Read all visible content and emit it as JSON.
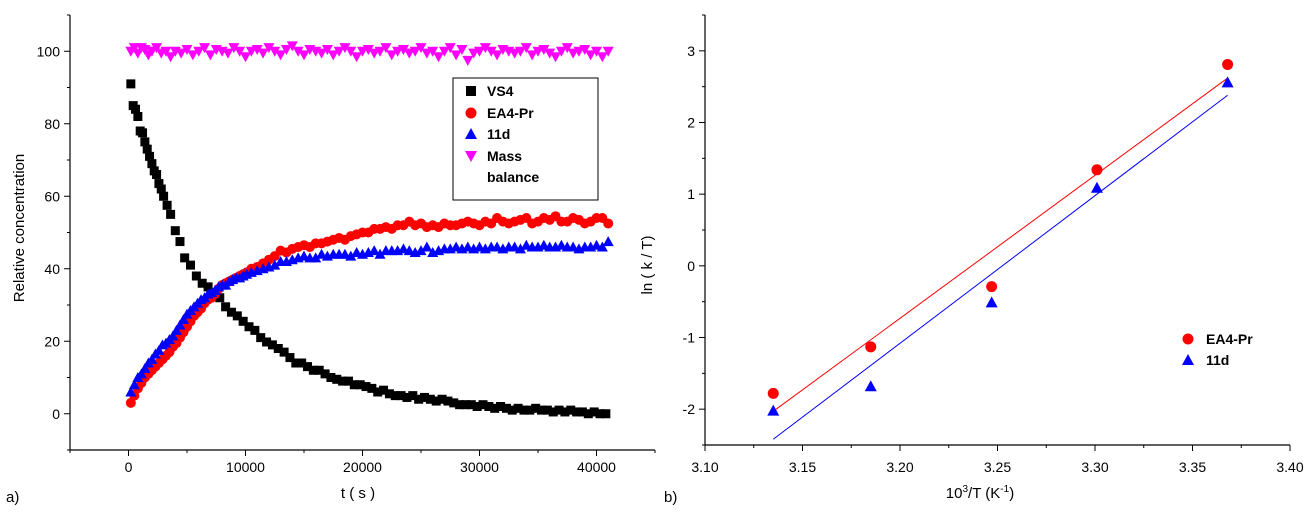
{
  "chart_data": [
    {
      "type": "scatter",
      "panel_label": "a)",
      "title": "",
      "xlabel": "t ( s )",
      "ylabel": "Relative concentration",
      "xlim": [
        -5000,
        45000
      ],
      "ylim": [
        -10,
        110
      ],
      "xticks": [
        0,
        10000,
        20000,
        30000,
        40000
      ],
      "yticks": [
        0,
        20,
        40,
        60,
        80,
        100
      ],
      "grid": false,
      "legend_position": "top-right",
      "series": [
        {
          "name": "VS4",
          "marker": "square",
          "color": "#000000",
          "x": [
            200,
            400,
            600,
            800,
            1000,
            1200,
            1400,
            1600,
            1800,
            2000,
            2200,
            2400,
            2600,
            2800,
            3000,
            3300,
            3600,
            4000,
            4400,
            4800,
            5300,
            5800,
            6300,
            6800,
            7300,
            7800,
            8300,
            8800,
            9300,
            9800,
            10300,
            10800,
            11300,
            11800,
            12300,
            12800,
            13300,
            13800,
            14300,
            14800,
            15300,
            15800,
            16300,
            16800,
            17300,
            17800,
            18300,
            18800,
            19300,
            19800,
            20300,
            20800,
            21300,
            21800,
            22300,
            22800,
            23300,
            23800,
            24300,
            24800,
            25300,
            25800,
            26300,
            26800,
            27300,
            27800,
            28300,
            28800,
            29300,
            29800,
            30300,
            30800,
            31300,
            31800,
            32300,
            32800,
            33300,
            33800,
            34300,
            34800,
            35300,
            35800,
            36300,
            36800,
            37300,
            37800,
            38300,
            38800,
            39300,
            39800,
            40300,
            40800
          ],
          "y": [
            91,
            85,
            84,
            82,
            78,
            77.5,
            75,
            73,
            71,
            69,
            67,
            66,
            63.5,
            62,
            60,
            57.5,
            55,
            50.5,
            47.5,
            43,
            41,
            38,
            36,
            35,
            33.5,
            32,
            29.5,
            28,
            27,
            25.5,
            24,
            23,
            21,
            19.8,
            19,
            18,
            17,
            15.5,
            14,
            14,
            13,
            12,
            12,
            11,
            10,
            9.5,
            9,
            9,
            8,
            8,
            7.5,
            7,
            6,
            6.5,
            5.5,
            5,
            5,
            4.5,
            5,
            4,
            4.5,
            4,
            3.5,
            4,
            3.5,
            3,
            2.5,
            2.5,
            2.5,
            2,
            2.5,
            2,
            1.5,
            2,
            1.5,
            1,
            1.5,
            1,
            1,
            1.5,
            1,
            1,
            0.5,
            1,
            0.5,
            1,
            0.5,
            0.5,
            0,
            0.5,
            0,
            0
          ]
        },
        {
          "name": "EA4-Pr",
          "marker": "circle",
          "color": "#ff0000",
          "x": [
            200,
            500,
            800,
            1100,
            1400,
            1700,
            2000,
            2300,
            2600,
            2900,
            3200,
            3500,
            3800,
            4100,
            4400,
            4700,
            5000,
            5300,
            5600,
            5900,
            6200,
            6500,
            6800,
            7100,
            7400,
            7700,
            8000,
            8300,
            8600,
            8900,
            9200,
            9500,
            9800,
            10100,
            10500,
            11000,
            11500,
            12000,
            12500,
            13000,
            13500,
            14000,
            14500,
            15000,
            15500,
            16000,
            16500,
            17000,
            17500,
            18000,
            18500,
            19000,
            19500,
            20000,
            20500,
            21000,
            21500,
            22000,
            22500,
            23000,
            23500,
            24000,
            24500,
            25000,
            25500,
            26000,
            26500,
            27000,
            27500,
            28000,
            28500,
            29000,
            29500,
            30000,
            30500,
            31000,
            31500,
            32000,
            32500,
            33000,
            33500,
            34000,
            34500,
            35000,
            35500,
            36000,
            36500,
            37000,
            37500,
            38000,
            38500,
            39000,
            39500,
            40000,
            40500,
            41000
          ],
          "y": [
            3,
            5,
            7,
            8.5,
            10,
            11,
            12,
            13,
            14,
            15,
            16,
            17,
            18.5,
            19.5,
            21,
            22.5,
            24,
            25.5,
            27,
            28,
            29,
            30.5,
            31.5,
            32,
            33,
            34.5,
            35.5,
            36,
            36.5,
            37,
            37.5,
            38,
            38.5,
            39,
            40,
            40.5,
            41.5,
            42.5,
            43.5,
            45,
            44.5,
            45.5,
            46,
            46.5,
            46,
            47,
            47,
            47.5,
            48,
            48.5,
            48,
            49,
            49.5,
            50,
            50,
            51,
            51,
            51.5,
            51,
            52,
            52,
            53,
            52,
            52.5,
            51.5,
            52,
            51.5,
            52.5,
            52,
            52,
            52.5,
            53,
            52.5,
            52,
            53,
            52.5,
            54,
            53,
            52.5,
            53,
            53.5,
            54,
            52.5,
            53,
            54,
            53.5,
            54.5,
            53,
            53,
            54,
            53.5,
            52.5,
            53,
            54,
            54,
            52.5
          ]
        },
        {
          "name": "11d",
          "marker": "triangle-up",
          "color": "#0000ff",
          "x": [
            200,
            500,
            800,
            1100,
            1400,
            1700,
            2000,
            2300,
            2600,
            2900,
            3200,
            3500,
            3800,
            4100,
            4400,
            4700,
            5000,
            5300,
            5600,
            5900,
            6200,
            6500,
            6800,
            7100,
            7400,
            7700,
            8000,
            8300,
            8600,
            8900,
            9200,
            9500,
            9800,
            10100,
            10500,
            11000,
            11500,
            12000,
            12500,
            13000,
            13500,
            14000,
            14500,
            15000,
            15500,
            16000,
            16500,
            17000,
            17500,
            18000,
            18500,
            19000,
            19500,
            20000,
            20500,
            21000,
            21500,
            22000,
            22500,
            23000,
            23500,
            24000,
            24500,
            25000,
            25500,
            26000,
            26500,
            27000,
            27500,
            28000,
            28500,
            29000,
            29500,
            30000,
            30500,
            31000,
            31500,
            32000,
            32500,
            33000,
            33500,
            34000,
            34500,
            35000,
            35500,
            36000,
            36500,
            37000,
            37500,
            38000,
            38500,
            39000,
            39500,
            40000,
            40500,
            41000
          ],
          "y": [
            6,
            8,
            10,
            11,
            12.5,
            14,
            15,
            16.5,
            17.5,
            19,
            19.5,
            20.5,
            21.5,
            23,
            24.5,
            26,
            27.5,
            28.5,
            29.5,
            30.5,
            31.5,
            32,
            33,
            33.5,
            34,
            35,
            35.5,
            35.5,
            36.5,
            37,
            37.5,
            37.5,
            38,
            38.5,
            39,
            39.5,
            40,
            40.5,
            41,
            42,
            42,
            42.5,
            43,
            43.5,
            43,
            43,
            44,
            43.5,
            44,
            44,
            44,
            43.5,
            44.5,
            44,
            44.5,
            45,
            44,
            45,
            45,
            45,
            45.5,
            45,
            44.5,
            45,
            46,
            44.5,
            45,
            45.5,
            45.5,
            46,
            45.5,
            46,
            45.5,
            46,
            45.5,
            46,
            46,
            45.5,
            46,
            46,
            45.5,
            46.5,
            46,
            46,
            46.5,
            46,
            46,
            46.5,
            46,
            46,
            45.5,
            46,
            46,
            46.5,
            46,
            47.5
          ]
        },
        {
          "name": "Mass\nbalance",
          "marker": "triangle-down",
          "color": "#ff00ff",
          "x": [
            200,
            500,
            800,
            1100,
            1400,
            1700,
            2000,
            2400,
            2800,
            3200,
            3600,
            4000,
            4500,
            5000,
            5500,
            6000,
            6500,
            7000,
            7500,
            8000,
            8500,
            9000,
            9500,
            10000,
            10500,
            11000,
            11500,
            12000,
            12500,
            13000,
            13500,
            14000,
            14500,
            15000,
            15500,
            16000,
            16500,
            17000,
            17500,
            18000,
            18500,
            19000,
            19500,
            20000,
            20500,
            21000,
            21500,
            22000,
            22500,
            23000,
            23500,
            24000,
            24500,
            25000,
            25500,
            26000,
            26500,
            27000,
            27500,
            28000,
            28500,
            29000,
            29500,
            30000,
            30500,
            31000,
            31500,
            32000,
            32500,
            33000,
            33500,
            34000,
            34500,
            35000,
            35500,
            36000,
            36500,
            37000,
            37500,
            38000,
            38500,
            39000,
            39500,
            40000,
            40500,
            41000
          ],
          "y": [
            100,
            101,
            99.5,
            101,
            100.5,
            99,
            100,
            101,
            99.5,
            100,
            98.5,
            100,
            99.5,
            100.5,
            99,
            100,
            101,
            99,
            100.5,
            100,
            99.5,
            101,
            100,
            98.5,
            100,
            100.5,
            99.5,
            101,
            100,
            99,
            100.5,
            101.5,
            100,
            99,
            100.5,
            100,
            99.5,
            100.5,
            99,
            100,
            101,
            100,
            98.5,
            100,
            100.5,
            99.5,
            100,
            101,
            99,
            100,
            100.5,
            99.5,
            100,
            101,
            99.5,
            100,
            98.5,
            100,
            101,
            99,
            100.5,
            97.5,
            99.5,
            100,
            101,
            100,
            99,
            100.5,
            100,
            99.5,
            100,
            101,
            99,
            100,
            100.5,
            99.5,
            98.5,
            100,
            101,
            99.5,
            100,
            100.5,
            99,
            100,
            98.5,
            100
          ]
        }
      ]
    },
    {
      "type": "scatter",
      "panel_label": "b)",
      "title": "",
      "xlabel_base": "10",
      "xlabel_sup": "3",
      "xlabel_mid": "/T (K",
      "xlabel_sup2": "-1",
      "xlabel_end": ")",
      "ylabel": "ln ( k / T)",
      "xlim": [
        3.1,
        3.4
      ],
      "ylim": [
        -2.5,
        3.5
      ],
      "xticks": [
        "3.10",
        "3.15",
        "3.20",
        "3.25",
        "3.30",
        "3.35",
        "3.40"
      ],
      "yticks": [
        "-2",
        "-1",
        "0",
        "1",
        "2",
        "3"
      ],
      "grid": false,
      "legend_position": "bottom-right",
      "series": [
        {
          "name": "EA4-Pr",
          "marker": "circle",
          "color": "#ff0000",
          "x": [
            3.135,
            3.185,
            3.247,
            3.301,
            3.368
          ],
          "y": [
            -1.78,
            -1.13,
            -0.29,
            1.34,
            2.81
          ],
          "fit": {
            "x": [
              3.135,
              3.368
            ],
            "y": [
              -2.03,
              2.62
            ]
          }
        },
        {
          "name": "11d",
          "marker": "triangle-up",
          "color": "#0000ff",
          "x": [
            3.135,
            3.185,
            3.247,
            3.301,
            3.368
          ],
          "y": [
            -2.02,
            -1.68,
            -0.51,
            1.09,
            2.56
          ],
          "fit": {
            "x": [
              3.135,
              3.368
            ],
            "y": [
              -2.42,
              2.38
            ]
          }
        }
      ]
    }
  ]
}
